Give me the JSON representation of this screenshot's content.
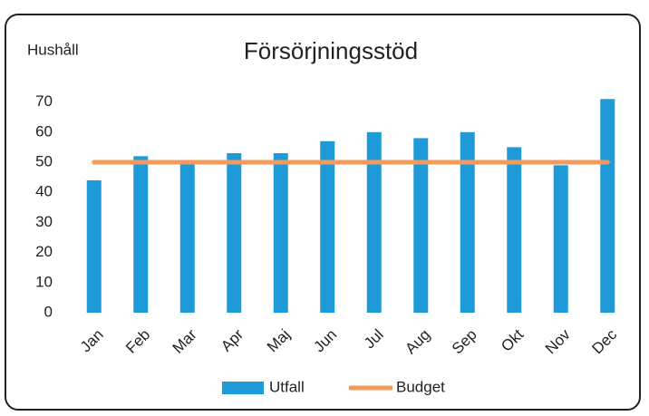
{
  "chart_data": {
    "type": "bar",
    "title": "Försörjningsstöd",
    "y_label": "Hushåll",
    "categories": [
      "Jan",
      "Feb",
      "Mar",
      "Apr",
      "Maj",
      "Jun",
      "Jul",
      "Aug",
      "Sep",
      "Okt",
      "Nov",
      "Dec"
    ],
    "series": [
      {
        "name": "Utfall",
        "type": "bar",
        "color": "#1e9ad9",
        "values": [
          44,
          52,
          50,
          53,
          53,
          57,
          60,
          58,
          60,
          55,
          49,
          71
        ]
      },
      {
        "name": "Budget",
        "type": "line",
        "color": "#f39a5c",
        "values": [
          50,
          50,
          50,
          50,
          50,
          50,
          50,
          50,
          50,
          50,
          50,
          50
        ]
      }
    ],
    "ylim": [
      0,
      75
    ],
    "yticks": [
      0,
      10,
      20,
      30,
      40,
      50,
      60,
      70
    ],
    "grid": false
  }
}
